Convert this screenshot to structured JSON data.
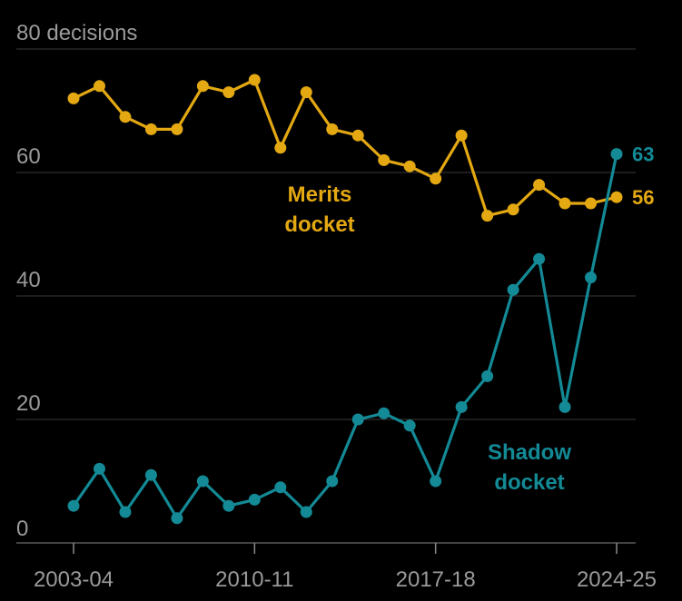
{
  "chart_data": {
    "type": "line",
    "x": [
      "2003-04",
      "2004-05",
      "2005-06",
      "2006-07",
      "2007-08",
      "2008-09",
      "2009-10",
      "2010-11",
      "2011-12",
      "2012-13",
      "2013-14",
      "2014-15",
      "2015-16",
      "2016-17",
      "2017-18",
      "2018-19",
      "2019-20",
      "2020-21",
      "2021-22",
      "2022-23",
      "2023-24",
      "2024-25"
    ],
    "x_tick_labels": [
      "2003-04",
      "2010-11",
      "2017-18",
      "2024-25"
    ],
    "y_unit_label": "decisions",
    "y_ticks": [
      0,
      20,
      40,
      60,
      80
    ],
    "ylim": [
      0,
      80
    ],
    "grid": true,
    "series": [
      {
        "name": "Merits\ndocket",
        "label_lines": [
          "Merits",
          "docket"
        ],
        "color": "#e3a812",
        "values": [
          72,
          74,
          69,
          67,
          67,
          74,
          73,
          75,
          64,
          73,
          67,
          66,
          62,
          61,
          59,
          66,
          53,
          54,
          58,
          55,
          55,
          56
        ],
        "end_label": "56"
      },
      {
        "name": "Shadow\ndocket",
        "label_lines": [
          "Shadow",
          "docket"
        ],
        "color": "#138a96",
        "values": [
          6,
          12,
          5,
          11,
          4,
          10,
          6,
          7,
          9,
          5,
          10,
          20,
          21,
          19,
          10,
          22,
          27,
          41,
          46,
          22,
          43,
          63
        ],
        "end_label": "63"
      }
    ]
  }
}
